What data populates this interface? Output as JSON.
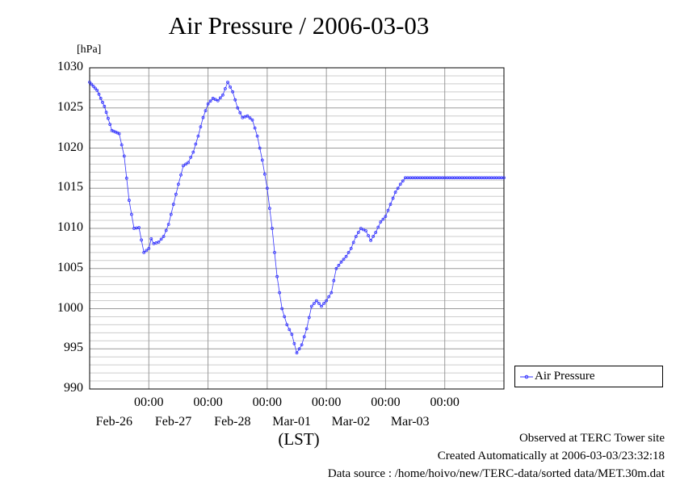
{
  "chart_data": {
    "type": "line",
    "title": "Air Pressure / 2006-03-03",
    "unit_label": "[hPa]",
    "xlabel": "(LST)",
    "ylim": [
      990,
      1030
    ],
    "yticks": [
      "990",
      "995",
      "1000",
      "1005",
      "1010",
      "1015",
      "1020",
      "1025",
      "1030"
    ],
    "xticks": [
      {
        "time": "00:00",
        "date": "Feb-26"
      },
      {
        "time": "00:00",
        "date": "Feb-27"
      },
      {
        "time": "00:00",
        "date": "Feb-28"
      },
      {
        "time": "00:00",
        "date": "Mar-01"
      },
      {
        "time": "00:00",
        "date": "Mar-02"
      },
      {
        "time": "00:00",
        "date": "Mar-03"
      }
    ],
    "xlim": [
      "2006-02-25 00:00",
      "2006-03-03 24:00"
    ],
    "grid": true,
    "legend_position": "bottom-right, outside plot",
    "series": [
      {
        "name": "Air Pressure",
        "color": "#3333ff",
        "marker": "open-circle",
        "x": [
          "2006-02-25 00:00",
          "2006-02-25 03:00",
          "2006-02-25 06:00",
          "2006-02-25 09:00",
          "2006-02-25 12:00",
          "2006-02-25 14:00",
          "2006-02-25 16:00",
          "2006-02-25 18:00",
          "2006-02-25 20:00",
          "2006-02-25 22:00",
          "2006-02-26 00:00",
          "2006-02-26 01:00",
          "2006-02-26 02:00",
          "2006-02-26 04:00",
          "2006-02-26 06:00",
          "2006-02-26 08:00",
          "2006-02-26 10:00",
          "2006-02-26 12:00",
          "2006-02-26 14:00",
          "2006-02-26 16:00",
          "2006-02-26 18:00",
          "2006-02-26 20:00",
          "2006-02-26 22:00",
          "2006-02-27 00:00",
          "2006-02-27 02:00",
          "2006-02-27 04:00",
          "2006-02-27 06:00",
          "2006-02-27 08:00",
          "2006-02-27 10:00",
          "2006-02-27 12:00",
          "2006-02-27 14:00",
          "2006-02-27 16:00",
          "2006-02-27 18:00",
          "2006-02-27 20:00",
          "2006-02-27 22:00",
          "2006-02-28 00:00",
          "2006-02-28 02:00",
          "2006-02-28 04:00",
          "2006-02-28 06:00",
          "2006-02-28 08:00",
          "2006-02-28 10:00",
          "2006-02-28 12:00",
          "2006-02-28 14:00",
          "2006-02-28 16:00",
          "2006-02-28 18:00",
          "2006-02-28 20:00",
          "2006-02-28 22:00",
          "2006-03-01 00:00",
          "2006-03-01 02:00",
          "2006-03-01 04:00",
          "2006-03-01 06:00",
          "2006-03-01 08:00",
          "2006-03-01 10:00",
          "2006-03-01 12:00",
          "2006-03-01 14:00",
          "2006-03-01 16:00",
          "2006-03-01 18:00",
          "2006-03-01 20:00",
          "2006-03-01 22:00",
          "2006-03-02 00:00",
          "2006-03-02 02:00",
          "2006-03-02 04:00",
          "2006-03-02 06:00",
          "2006-03-02 08:00",
          "2006-03-02 10:00",
          "2006-03-02 12:00",
          "2006-03-02 14:00",
          "2006-03-02 16:00",
          "2006-03-02 18:00",
          "2006-03-02 20:00",
          "2006-03-02 22:00",
          "2006-03-03 00:00",
          "2006-03-03 02:00",
          "2006-03-03 04:00",
          "2006-03-03 06:00",
          "2006-03-03 08:00",
          "2006-03-03 10:00",
          "2006-03-03 12:00",
          "2006-03-03 14:00",
          "2006-03-03 16:00",
          "2006-03-03 18:00",
          "2006-03-03 20:00",
          "2006-03-03 22:00",
          "2006-03-03 24:00"
        ],
        "values": [
          1028.2,
          1027.2,
          1025.2,
          1022.2,
          1021.8,
          1019.0,
          1013.5,
          1010.0,
          1010.1,
          1007.0,
          1007.5,
          1008.7,
          1008.1,
          1008.3,
          1009.0,
          1010.5,
          1013.0,
          1015.5,
          1017.8,
          1018.2,
          1019.5,
          1021.5,
          1023.8,
          1025.5,
          1026.2,
          1025.9,
          1026.6,
          1028.2,
          1027.0,
          1025.0,
          1023.8,
          1024.0,
          1023.5,
          1021.5,
          1018.5,
          1015.0,
          1010.0,
          1004.0,
          1000.0,
          998.0,
          996.8,
          994.5,
          995.5,
          997.5,
          1000.3,
          1001.0,
          1000.3,
          1001.0,
          1002.0,
          1005.0,
          1005.8,
          1006.5,
          1007.5,
          1009.0,
          1010.0,
          1009.7,
          1008.5,
          1009.5,
          1010.8,
          1011.5,
          1013.0,
          1014.5,
          1015.5,
          1016.3,
          1016.3,
          1016.3,
          1016.3,
          1016.3,
          1016.3,
          1016.3,
          1016.3,
          1016.3,
          1016.3,
          1016.3,
          1016.3,
          1016.3,
          1016.3,
          1016.3,
          1016.3,
          1016.3,
          1016.3,
          1016.3,
          1016.3,
          1016.3
        ]
      }
    ]
  },
  "footer": {
    "observed": "Observed at TERC Tower site",
    "created": "Created Automatically at 2006-03-03/23:32:18",
    "source": "Data source : /home/hoivo/new/TERC-data/sorted  data/MET.30m.dat"
  }
}
